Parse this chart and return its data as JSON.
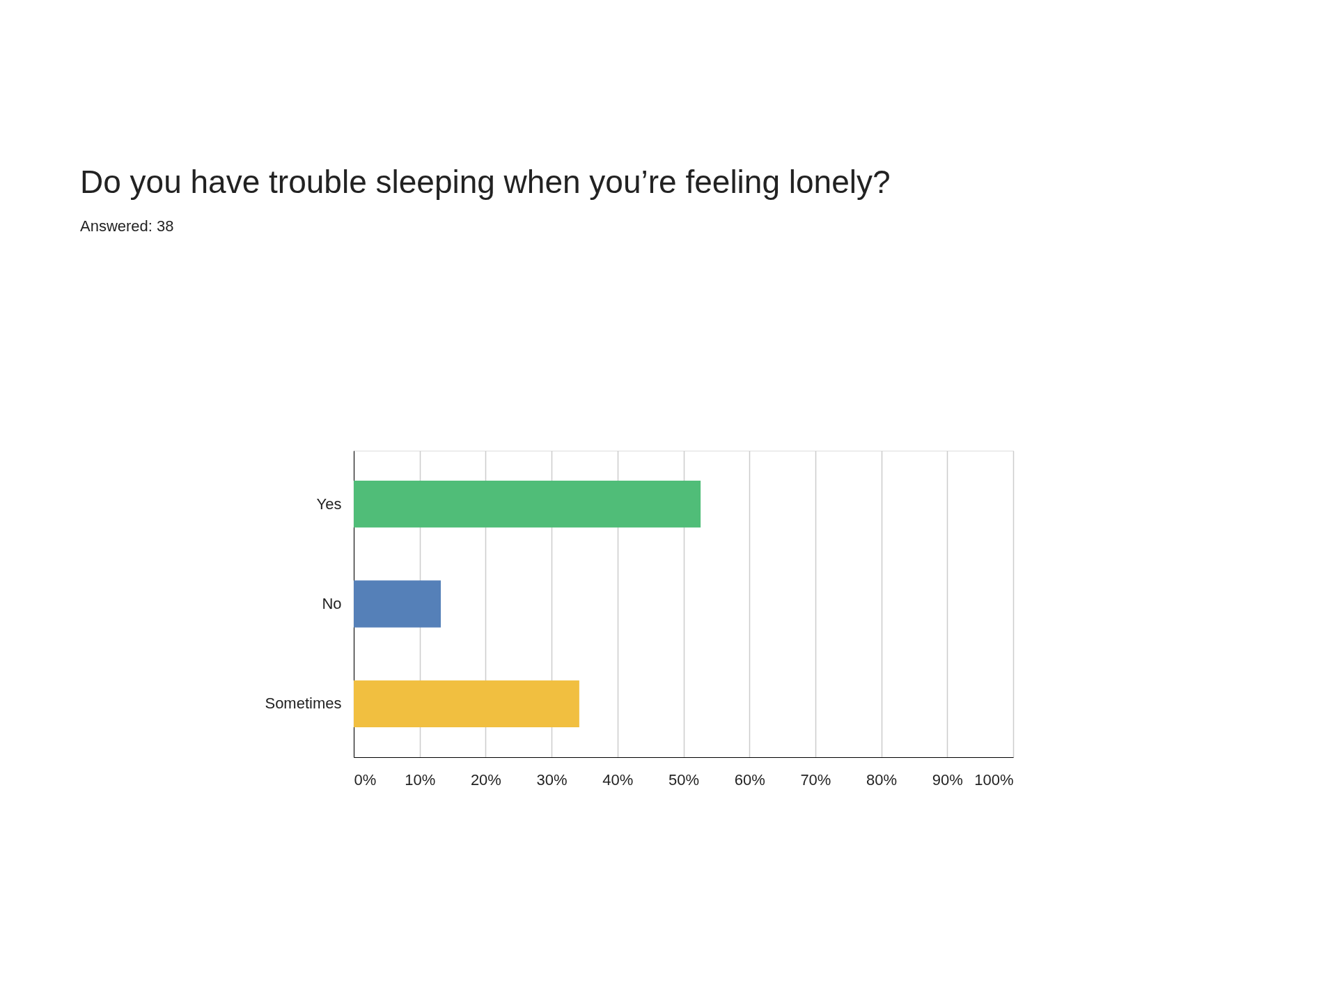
{
  "chart_data": {
    "type": "bar",
    "orientation": "horizontal",
    "title": "Do you have trouble sleeping when you’re feeling lonely?",
    "subtitle": "Answered: 38",
    "categories": [
      "Yes",
      "No",
      "Sometimes"
    ],
    "values": [
      52.6,
      13.2,
      34.2
    ],
    "colors": [
      "#50bd78",
      "#5580b8",
      "#f1bf40"
    ],
    "xlim": [
      0,
      100
    ],
    "xticks": [
      {
        "value": 0,
        "label": "0%"
      },
      {
        "value": 10,
        "label": "10%"
      },
      {
        "value": 20,
        "label": "20%"
      },
      {
        "value": 30,
        "label": "30%"
      },
      {
        "value": 40,
        "label": "40%"
      },
      {
        "value": 50,
        "label": "50%"
      },
      {
        "value": 60,
        "label": "60%"
      },
      {
        "value": 70,
        "label": "70%"
      },
      {
        "value": 80,
        "label": "80%"
      },
      {
        "value": 90,
        "label": "90%"
      },
      {
        "value": 100,
        "label": "100%"
      }
    ],
    "grid": "x"
  }
}
